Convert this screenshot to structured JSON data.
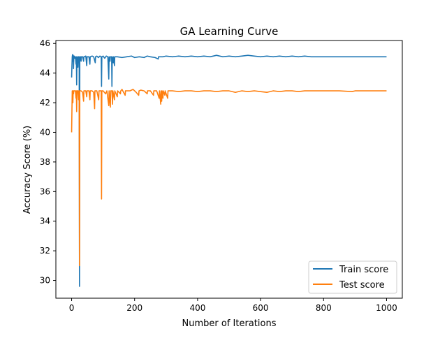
{
  "chart_data": {
    "type": "line",
    "title": "GA Learning Curve",
    "xlabel": "Number of Iterations",
    "ylabel": "Accuracy Score (%)",
    "xlim": [
      -50,
      1050
    ],
    "ylim": [
      28.8,
      46.2
    ],
    "xticks": [
      0,
      200,
      400,
      600,
      800,
      1000
    ],
    "yticks": [
      30,
      32,
      34,
      36,
      38,
      40,
      42,
      44,
      46
    ],
    "grid": false,
    "legend_position": "bottom-right",
    "series": [
      {
        "name": "Train score",
        "color": "#1f77b4",
        "points": [
          [
            0,
            43.7
          ],
          [
            1,
            44.5
          ],
          [
            2,
            45.1
          ],
          [
            3,
            45.25
          ],
          [
            4,
            44.8
          ],
          [
            5,
            45.2
          ],
          [
            6,
            44.3
          ],
          [
            7,
            45.1
          ],
          [
            8,
            45.15
          ],
          [
            10,
            45.0
          ],
          [
            12,
            45.1
          ],
          [
            14,
            44.6
          ],
          [
            15,
            45.1
          ],
          [
            16,
            43.2
          ],
          [
            17,
            45.05
          ],
          [
            19,
            45.1
          ],
          [
            20,
            44.4
          ],
          [
            21,
            45.1
          ],
          [
            23,
            45.1
          ],
          [
            24,
            44.7
          ],
          [
            25,
            29.6
          ],
          [
            26,
            45.1
          ],
          [
            28,
            45.1
          ],
          [
            30,
            44.8
          ],
          [
            31,
            45.1
          ],
          [
            35,
            45.1
          ],
          [
            38,
            44.8
          ],
          [
            39,
            45.1
          ],
          [
            45,
            45.15
          ],
          [
            48,
            44.5
          ],
          [
            49,
            45.1
          ],
          [
            55,
            45.1
          ],
          [
            58,
            44.6
          ],
          [
            59,
            45.1
          ],
          [
            65,
            45.15
          ],
          [
            70,
            45.1
          ],
          [
            75,
            44.7
          ],
          [
            76,
            45.1
          ],
          [
            80,
            45.15
          ],
          [
            85,
            45.05
          ],
          [
            90,
            45.15
          ],
          [
            94,
            45.1
          ],
          [
            95,
            43.1
          ],
          [
            96,
            45.1
          ],
          [
            100,
            45.15
          ],
          [
            105,
            45.0
          ],
          [
            110,
            45.15
          ],
          [
            115,
            45.1
          ],
          [
            118,
            43.6
          ],
          [
            119,
            45.1
          ],
          [
            122,
            44.8
          ],
          [
            123,
            45.1
          ],
          [
            127,
            45.1
          ],
          [
            128,
            43.1
          ],
          [
            129,
            45.1
          ],
          [
            132,
            44.7
          ],
          [
            133,
            45.1
          ],
          [
            136,
            44.5
          ],
          [
            137,
            45.1
          ],
          [
            145,
            45.1
          ],
          [
            160,
            45.05
          ],
          [
            175,
            45.1
          ],
          [
            190,
            45.15
          ],
          [
            200,
            45.05
          ],
          [
            215,
            45.1
          ],
          [
            230,
            45.05
          ],
          [
            240,
            45.15
          ],
          [
            250,
            45.1
          ],
          [
            265,
            45.05
          ],
          [
            275,
            44.95
          ],
          [
            276,
            45.1
          ],
          [
            290,
            45.1
          ],
          [
            300,
            45.15
          ],
          [
            320,
            45.1
          ],
          [
            340,
            45.15
          ],
          [
            360,
            45.1
          ],
          [
            380,
            45.15
          ],
          [
            400,
            45.1
          ],
          [
            420,
            45.15
          ],
          [
            440,
            45.1
          ],
          [
            460,
            45.2
          ],
          [
            480,
            45.1
          ],
          [
            500,
            45.15
          ],
          [
            520,
            45.1
          ],
          [
            540,
            45.15
          ],
          [
            560,
            45.2
          ],
          [
            580,
            45.15
          ],
          [
            600,
            45.1
          ],
          [
            620,
            45.15
          ],
          [
            640,
            45.1
          ],
          [
            660,
            45.15
          ],
          [
            680,
            45.1
          ],
          [
            700,
            45.15
          ],
          [
            720,
            45.1
          ],
          [
            740,
            45.15
          ],
          [
            760,
            45.1
          ],
          [
            800,
            45.1
          ],
          [
            850,
            45.1
          ],
          [
            900,
            45.1
          ],
          [
            950,
            45.1
          ],
          [
            1000,
            45.1
          ]
        ]
      },
      {
        "name": "Test score",
        "color": "#ff7f0e",
        "points": [
          [
            0,
            40.0
          ],
          [
            1,
            41.5
          ],
          [
            2,
            42.8
          ],
          [
            3,
            42.8
          ],
          [
            4,
            42.0
          ],
          [
            5,
            42.8
          ],
          [
            6,
            42.6
          ],
          [
            7,
            42.8
          ],
          [
            10,
            42.8
          ],
          [
            12,
            42.8
          ],
          [
            14,
            42.3
          ],
          [
            15,
            42.8
          ],
          [
            16,
            41.4
          ],
          [
            17,
            42.8
          ],
          [
            20,
            42.8
          ],
          [
            22,
            42.2
          ],
          [
            23,
            42.8
          ],
          [
            24,
            42.8
          ],
          [
            25,
            31.0
          ],
          [
            26,
            42.8
          ],
          [
            30,
            42.8
          ],
          [
            35,
            42.7
          ],
          [
            38,
            42.1
          ],
          [
            39,
            42.8
          ],
          [
            45,
            42.8
          ],
          [
            48,
            42.4
          ],
          [
            49,
            42.8
          ],
          [
            55,
            42.8
          ],
          [
            58,
            42.2
          ],
          [
            59,
            42.8
          ],
          [
            65,
            42.8
          ],
          [
            70,
            42.7
          ],
          [
            73,
            41.6
          ],
          [
            74,
            42.8
          ],
          [
            80,
            42.8
          ],
          [
            86,
            42.2
          ],
          [
            87,
            42.8
          ],
          [
            90,
            42.8
          ],
          [
            94,
            42.8
          ],
          [
            95,
            35.5
          ],
          [
            96,
            42.8
          ],
          [
            100,
            42.8
          ],
          [
            108,
            42.6
          ],
          [
            112,
            42.8
          ],
          [
            118,
            41.8
          ],
          [
            119,
            42.8
          ],
          [
            123,
            41.7
          ],
          [
            124,
            42.8
          ],
          [
            128,
            42.8
          ],
          [
            130,
            41.9
          ],
          [
            131,
            42.8
          ],
          [
            136,
            42.2
          ],
          [
            137,
            42.8
          ],
          [
            145,
            42.4
          ],
          [
            146,
            42.8
          ],
          [
            155,
            42.6
          ],
          [
            156,
            42.8
          ],
          [
            160,
            42.9
          ],
          [
            170,
            42.5
          ],
          [
            171,
            42.8
          ],
          [
            185,
            42.8
          ],
          [
            195,
            42.9
          ],
          [
            205,
            42.7
          ],
          [
            213,
            42.5
          ],
          [
            214,
            42.8
          ],
          [
            220,
            42.85
          ],
          [
            230,
            42.8
          ],
          [
            240,
            42.6
          ],
          [
            241,
            42.8
          ],
          [
            250,
            42.8
          ],
          [
            260,
            42.5
          ],
          [
            261,
            42.8
          ],
          [
            270,
            42.8
          ],
          [
            278,
            42.3
          ],
          [
            279,
            42.8
          ],
          [
            283,
            41.9
          ],
          [
            284,
            42.8
          ],
          [
            286,
            42.1
          ],
          [
            287,
            42.8
          ],
          [
            290,
            42.3
          ],
          [
            291,
            42.8
          ],
          [
            296,
            42.5
          ],
          [
            297,
            42.8
          ],
          [
            305,
            42.3
          ],
          [
            306,
            42.8
          ],
          [
            320,
            42.8
          ],
          [
            340,
            42.75
          ],
          [
            360,
            42.8
          ],
          [
            380,
            42.8
          ],
          [
            400,
            42.75
          ],
          [
            420,
            42.8
          ],
          [
            440,
            42.8
          ],
          [
            460,
            42.75
          ],
          [
            480,
            42.8
          ],
          [
            500,
            42.8
          ],
          [
            520,
            42.7
          ],
          [
            540,
            42.8
          ],
          [
            560,
            42.75
          ],
          [
            580,
            42.8
          ],
          [
            600,
            42.75
          ],
          [
            620,
            42.7
          ],
          [
            640,
            42.8
          ],
          [
            660,
            42.75
          ],
          [
            680,
            42.8
          ],
          [
            700,
            42.8
          ],
          [
            720,
            42.75
          ],
          [
            740,
            42.8
          ],
          [
            760,
            42.8
          ],
          [
            800,
            42.8
          ],
          [
            850,
            42.8
          ],
          [
            890,
            42.75
          ],
          [
            900,
            42.8
          ],
          [
            950,
            42.8
          ],
          [
            1000,
            42.8
          ]
        ]
      }
    ]
  }
}
